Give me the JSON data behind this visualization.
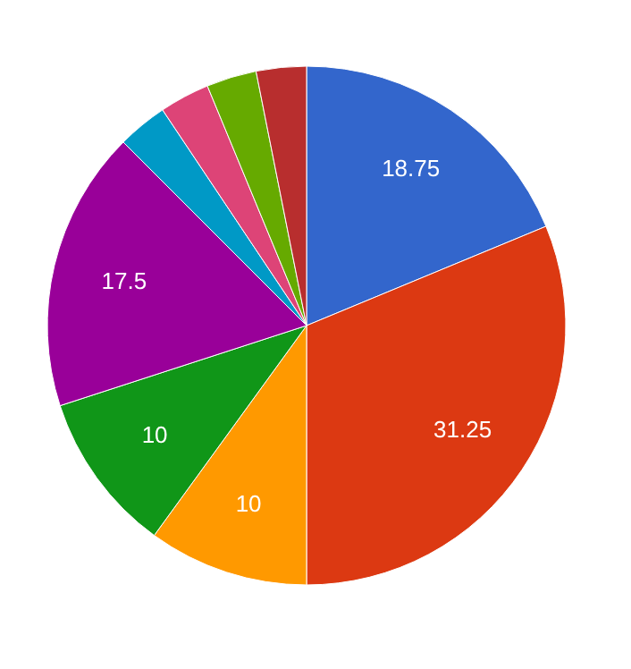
{
  "chart_data": {
    "type": "pie",
    "categories": [
      null,
      null,
      null,
      null,
      null,
      null,
      null,
      null,
      null
    ],
    "values": [
      18.75,
      31.25,
      10,
      10,
      17.5,
      3.125,
      3.125,
      3.125,
      3.125
    ],
    "colors": [
      "#3366cc",
      "#dc3912",
      "#ff9900",
      "#109618",
      "#990099",
      "#0099c6",
      "#dd4477",
      "#66aa00",
      "#b82e2e"
    ],
    "value_labels": [
      "18.75",
      "31.25",
      "10",
      "10",
      "17.5",
      null,
      null,
      null,
      null
    ],
    "legend": false
  }
}
